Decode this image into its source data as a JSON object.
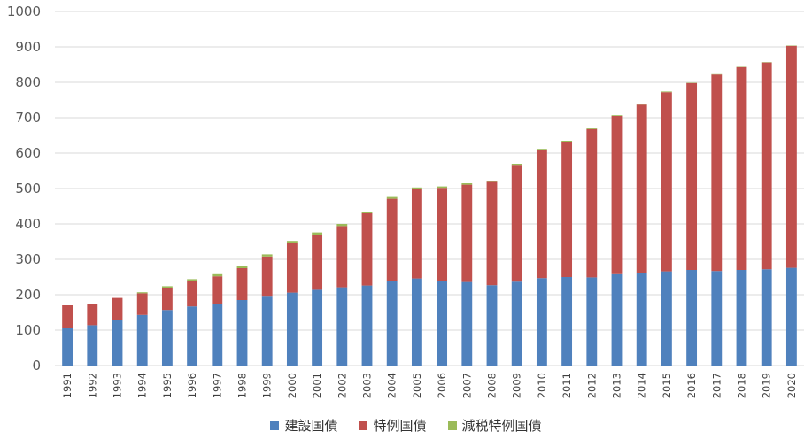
{
  "chart_data": {
    "type": "bar",
    "stacked": true,
    "categories": [
      "1991",
      "1992",
      "1993",
      "1994",
      "1995",
      "1996",
      "1997",
      "1998",
      "1999",
      "2000",
      "2001",
      "2002",
      "2003",
      "2004",
      "2005",
      "2006",
      "2007",
      "2008",
      "2009",
      "2010",
      "2011",
      "2012",
      "2013",
      "2014",
      "2015",
      "2016",
      "2017",
      "2018",
      "2019",
      "2020"
    ],
    "series": [
      {
        "name": "建設国債",
        "color": "#4F81BD",
        "values": [
          105,
          114,
          130,
          143,
          157,
          167,
          174,
          185,
          197,
          206,
          214,
          221,
          226,
          240,
          246,
          240,
          236,
          227,
          237,
          247,
          250,
          249,
          258,
          261,
          266,
          270,
          267,
          270,
          272,
          276
        ]
      },
      {
        "name": "特例国債",
        "color": "#C0504D",
        "values": [
          65,
          61,
          61,
          61,
          63,
          71,
          78,
          90,
          111,
          140,
          155,
          173,
          204,
          231,
          253,
          262,
          275,
          292,
          330,
          362,
          382,
          419,
          447,
          476,
          506,
          528,
          555,
          573,
          584,
          627
        ]
      },
      {
        "name": "減税特例国債",
        "color": "#9BBB59",
        "values": [
          0,
          0,
          0,
          3,
          4,
          6,
          6,
          7,
          6,
          6,
          7,
          6,
          5,
          5,
          4,
          4,
          4,
          3,
          3,
          3,
          3,
          2,
          2,
          2,
          2,
          1,
          1,
          1,
          1,
          1
        ]
      }
    ],
    "ylim": [
      0,
      1000
    ],
    "yticks": [
      0,
      100,
      200,
      300,
      400,
      500,
      600,
      700,
      800,
      900,
      1000
    ],
    "grid": true,
    "legend": "bottom",
    "xlabel": "",
    "ylabel": "",
    "title": ""
  }
}
